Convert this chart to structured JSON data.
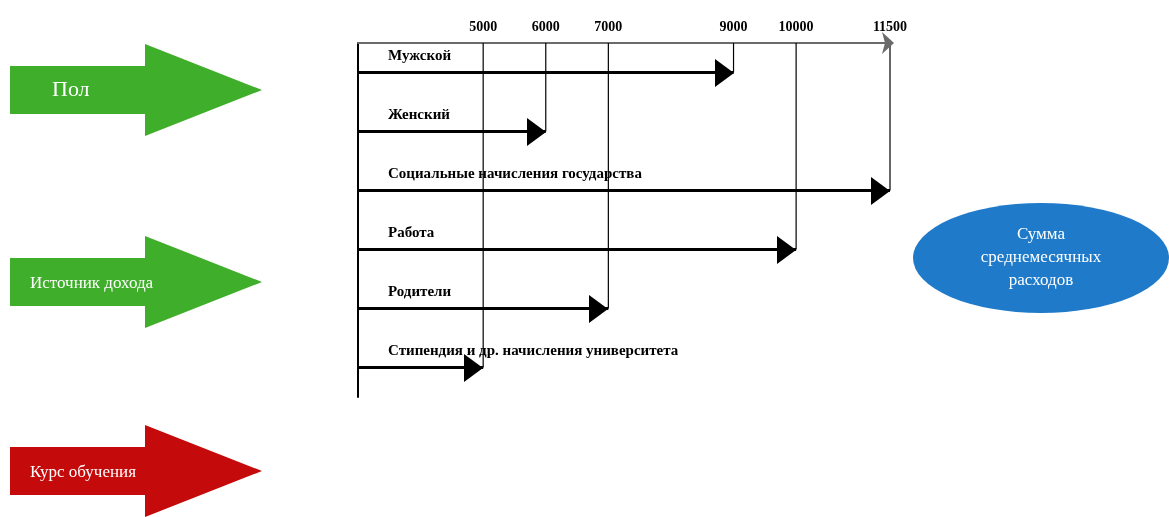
{
  "chart_data": {
    "type": "bar",
    "orientation": "horizontal",
    "color": "#000000",
    "categories": [
      "Мужской",
      "Женский",
      "Социальные начисления государства",
      "Работа",
      "Родители",
      "Стипендия и др. начисления университета"
    ],
    "values": [
      9000,
      6000,
      11500,
      10000,
      7000,
      5000
    ],
    "xlim": [
      3000,
      11500
    ],
    "xticks": [
      5000,
      6000,
      7000,
      9000,
      10000,
      11500
    ],
    "annotations": [
      "Пол",
      "Источник дохода",
      "Курс обучения",
      "Сумма среднемесячных расходов"
    ]
  }
}
